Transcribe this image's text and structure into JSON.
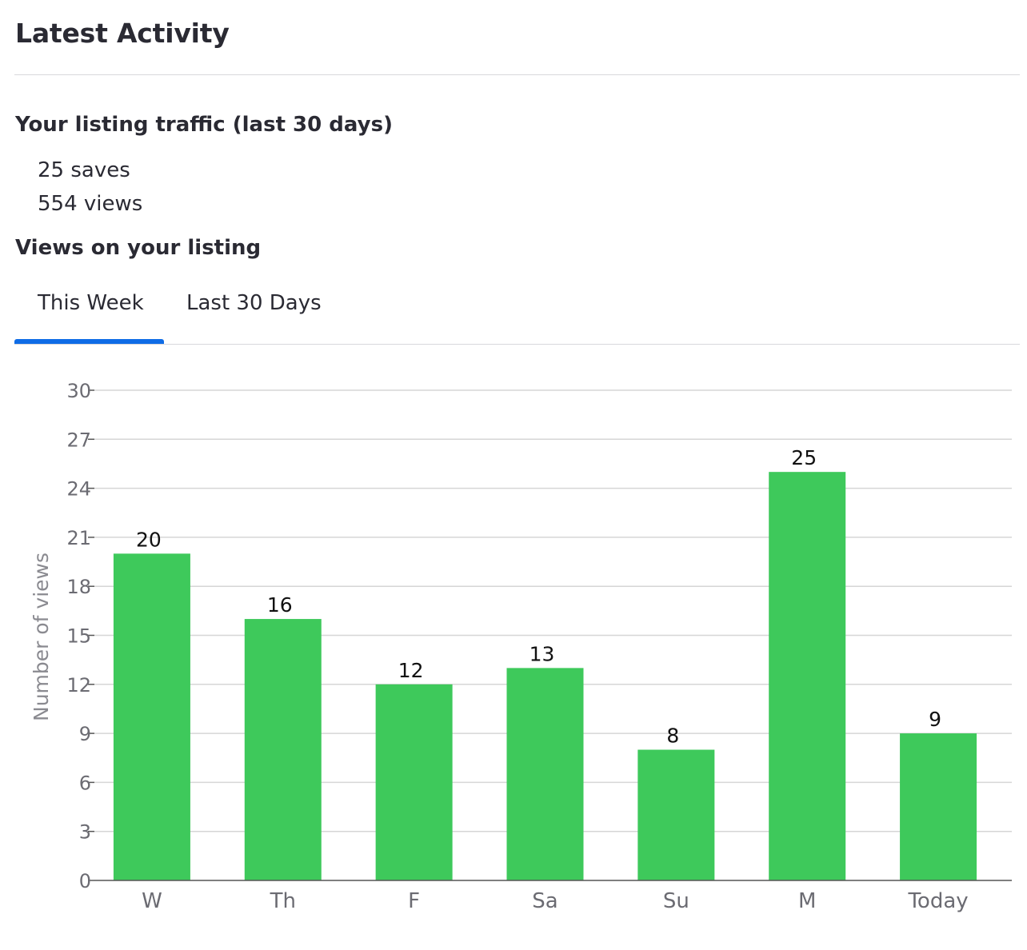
{
  "header": {
    "title": "Latest Activity"
  },
  "traffic": {
    "title": "Your listing traffic (last 30 days)",
    "saves": "25 saves",
    "views": "554 views"
  },
  "views_section": {
    "title": "Views on your listing",
    "tabs": [
      {
        "label": "This Week",
        "active": true
      },
      {
        "label": "Last 30 Days",
        "active": false
      }
    ]
  },
  "colors": {
    "bar": "#3ec95b",
    "tab_accent": "#0f6ce6",
    "grid": "#d6d6d6",
    "axis": "#555555"
  },
  "chart_data": {
    "type": "bar",
    "categories": [
      "W",
      "Th",
      "F",
      "Sa",
      "Su",
      "M",
      "Today"
    ],
    "values": [
      20,
      16,
      12,
      13,
      8,
      25,
      9
    ],
    "ylabel": "Number of views",
    "ylim": [
      0,
      30
    ],
    "yticks": [
      0,
      3,
      6,
      9,
      12,
      15,
      18,
      21,
      24,
      27,
      30
    ],
    "grid": true,
    "data_labels": true
  }
}
